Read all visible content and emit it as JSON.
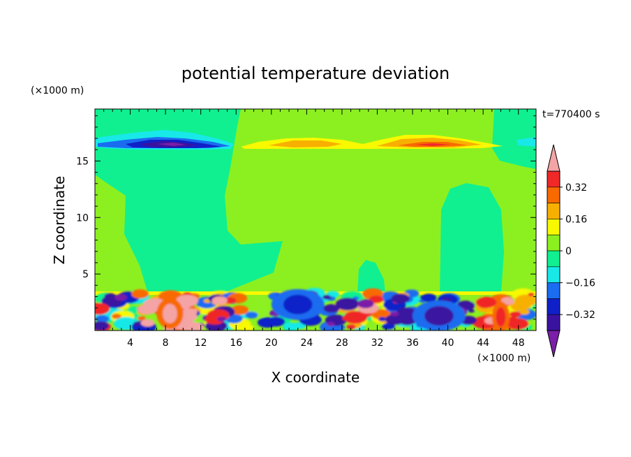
{
  "chart_data": {
    "type": "heatmap",
    "title": "potential temperature deviation",
    "xlabel": "X coordinate",
    "ylabel": "Z coordinate",
    "x_unit": "(×1000 m)",
    "y_unit": "(×1000 m)",
    "time_label": "t=770400 s",
    "xlim": [
      0,
      50
    ],
    "ylim": [
      0,
      19.6
    ],
    "x_ticks": [
      4,
      8,
      12,
      16,
      20,
      24,
      28,
      32,
      36,
      40,
      44,
      48
    ],
    "y_ticks": [
      5,
      10,
      15
    ],
    "colorbar": {
      "levels": [
        -0.4,
        -0.32,
        -0.24,
        -0.16,
        -0.08,
        0,
        0.08,
        0.16,
        0.24,
        0.32,
        0.4
      ],
      "tick_labels": [
        {
          "value": 0.32,
          "label": "0.32"
        },
        {
          "value": 0.16,
          "label": "0.16"
        },
        {
          "value": 0,
          "label": "0"
        },
        {
          "value": -0.16,
          "label": "−0.16"
        },
        {
          "value": -0.32,
          "label": "−0.32"
        }
      ],
      "colors": [
        "#7a1fa8",
        "#3a12a0",
        "#1020c8",
        "#1a6cf0",
        "#18e8e8",
        "#10f090",
        "#8cf020",
        "#f8f800",
        "#f8b000",
        "#f86a00",
        "#f02828",
        "#f4a4a4"
      ],
      "extend": "both"
    },
    "background_value": 0.02,
    "features": [
      {
        "kind": "upper-anomaly",
        "x": [
          3.5,
          15
        ],
        "z": 17.1,
        "value": -0.35
      },
      {
        "kind": "upper-anomaly",
        "x": [
          18,
          28
        ],
        "z": 17.0,
        "value": 0.12
      },
      {
        "kind": "upper-anomaly",
        "x": [
          32,
          43
        ],
        "z": 17.2,
        "value": 0.28
      },
      {
        "kind": "lower-anomaly",
        "x": [
          7,
          10
        ],
        "z": 1.5,
        "value": 0.42
      },
      {
        "kind": "lower-anomaly",
        "x": [
          20,
          26
        ],
        "z": 2.3,
        "value": -0.3
      },
      {
        "kind": "lower-anomaly",
        "x": [
          36,
          42
        ],
        "z": 1.3,
        "value": -0.33
      },
      {
        "kind": "lower-anomaly",
        "x": [
          45,
          47
        ],
        "z": 1.2,
        "value": 0.38
      }
    ]
  }
}
